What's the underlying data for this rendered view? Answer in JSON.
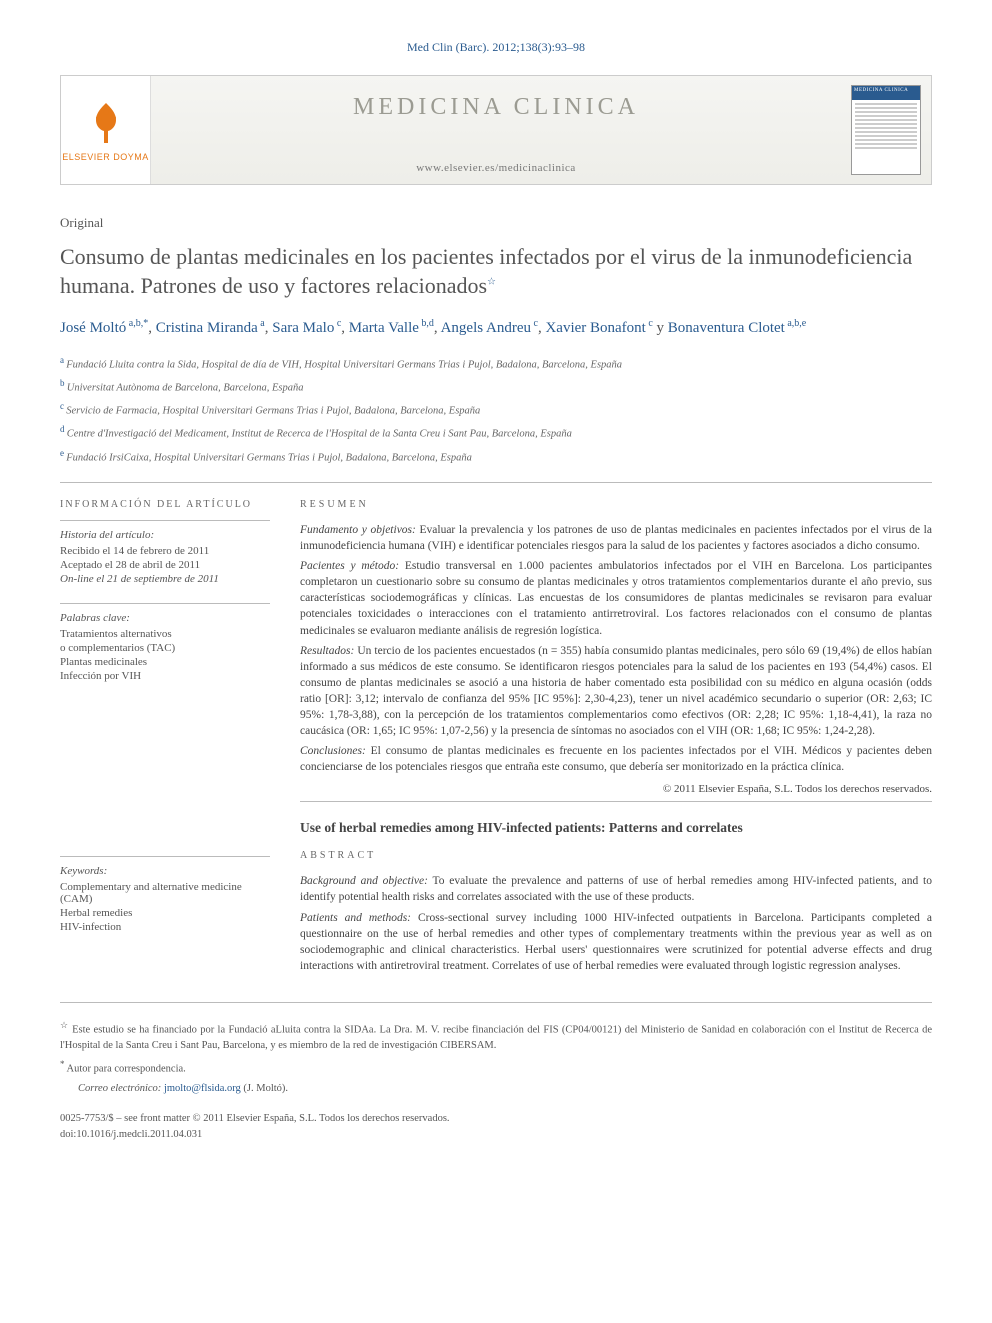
{
  "citation": "Med Clin (Barc). 2012;138(3):93–98",
  "banner": {
    "publisher": "ELSEVIER DOYMA",
    "journal_title": "MEDICINA CLINICA",
    "url": "www.elsevier.es/medicinaclinica",
    "cover_header": "MEDICINA CLINICA"
  },
  "article": {
    "type": "Original",
    "title": "Consumo de plantas medicinales en los pacientes infectados por el virus de la inmunodeficiencia humana. Patrones de uso y factores relacionados",
    "title_star": "☆"
  },
  "authors": [
    {
      "name": "José Moltó",
      "aff": "a,b,*"
    },
    {
      "name": "Cristina Miranda",
      "aff": "a"
    },
    {
      "name": "Sara Malo",
      "aff": "c"
    },
    {
      "name": "Marta Valle",
      "aff": "b,d"
    },
    {
      "name": "Angels Andreu",
      "aff": "c"
    },
    {
      "name": "Xavier Bonafont",
      "aff": "c"
    },
    {
      "name": "Bonaventura Clotet",
      "aff": "a,b,e"
    }
  ],
  "author_joiner": " y ",
  "affiliations": [
    {
      "label": "a",
      "text": "Fundació Lluita contra la Sida, Hospital de día de VIH, Hospital Universitari Germans Trias i Pujol, Badalona, Barcelona, España"
    },
    {
      "label": "b",
      "text": "Universitat Autònoma de Barcelona, Barcelona, España"
    },
    {
      "label": "c",
      "text": "Servicio de Farmacia, Hospital Universitari Germans Trias i Pujol, Badalona, Barcelona, España"
    },
    {
      "label": "d",
      "text": "Centre d'Investigació del Medicament, Institut de Recerca de l'Hospital de la Santa Creu i Sant Pau, Barcelona, España"
    },
    {
      "label": "e",
      "text": "Fundació IrsiCaixa, Hospital Universitari Germans Trias i Pujol, Badalona, Barcelona, España"
    }
  ],
  "info": {
    "section_title": "INFORMACIÓN DEL ARTÍCULO",
    "history_label": "Historia del artículo:",
    "received": "Recibido el 14 de febrero de 2011",
    "accepted": "Aceptado el 28 de abril de 2011",
    "online": "On-line el 21 de septiembre de 2011",
    "keywords_es_label": "Palabras clave:",
    "keywords_es": [
      "Tratamientos alternativos",
      "o complementarios (TAC)",
      "Plantas medicinales",
      "Infección por VIH"
    ],
    "keywords_en_label": "Keywords:",
    "keywords_en": [
      "Complementary and alternative medicine (CAM)",
      "Herbal remedies",
      "HIV-infection"
    ]
  },
  "resumen": {
    "heading": "RESUMEN",
    "paras": [
      {
        "lead": "Fundamento y objetivos:",
        "text": " Evaluar la prevalencia y los patrones de uso de plantas medicinales en pacientes infectados por el virus de la inmunodeficiencia humana (VIH) e identificar potenciales riesgos para la salud de los pacientes y factores asociados a dicho consumo."
      },
      {
        "lead": "Pacientes y método:",
        "text": " Estudio transversal en 1.000 pacientes ambulatorios infectados por el VIH en Barcelona. Los participantes completaron un cuestionario sobre su consumo de plantas medicinales y otros tratamientos complementarios durante el año previo, sus características sociodemográficas y clínicas. Las encuestas de los consumidores de plantas medicinales se revisaron para evaluar potenciales toxicidades o interacciones con el tratamiento antirretroviral. Los factores relacionados con el consumo de plantas medicinales se evaluaron mediante análisis de regresión logística."
      },
      {
        "lead": "Resultados:",
        "text": " Un tercio de los pacientes encuestados (n = 355) había consumido plantas medicinales, pero sólo 69 (19,4%) de ellos habían informado a sus médicos de este consumo. Se identificaron riesgos potenciales para la salud de los pacientes en 193 (54,4%) casos. El consumo de plantas medicinales se asoció a una historia de haber comentado esta posibilidad con su médico en alguna ocasión (odds ratio [OR]: 3,12; intervalo de confianza del 95% [IC 95%]: 2,30-4,23), tener un nivel académico secundario o superior (OR: 2,63; IC 95%: 1,78-3,88), con la percepción de los tratamientos complementarios como efectivos (OR: 2,28; IC 95%: 1,18-4,41), la raza no caucásica (OR: 1,65; IC 95%: 1,07-2,56) y la presencia de síntomas no asociados con el VIH (OR: 1,68; IC 95%: 1,24-2,28)."
      },
      {
        "lead": "Conclusiones:",
        "text": " El consumo de plantas medicinales es frecuente en los pacientes infectados por el VIH. Médicos y pacientes deben concienciarse de los potenciales riesgos que entraña este consumo, que debería ser monitorizado en la práctica clínica."
      }
    ],
    "copyright": "© 2011 Elsevier España, S.L. Todos los derechos reservados."
  },
  "english": {
    "title": "Use of herbal remedies among HIV-infected patients: Patterns and correlates",
    "heading": "ABSTRACT",
    "paras": [
      {
        "lead": "Background and objective:",
        "text": " To evaluate the prevalence and patterns of use of herbal remedies among HIV-infected patients, and to identify potential health risks and correlates associated with the use of these products."
      },
      {
        "lead": "Patients and methods:",
        "text": " Cross-sectional survey including 1000 HIV-infected outpatients in Barcelona. Participants completed a questionnaire on the use of herbal remedies and other types of complementary treatments within the previous year as well as on sociodemographic and clinical characteristics. Herbal users' questionnaires were scrutinized for potential adverse effects and drug interactions with antiretroviral treatment. Correlates of use of herbal remedies were evaluated through logistic regression analyses."
      }
    ]
  },
  "footnotes": {
    "funding_star": "☆",
    "funding": " Este estudio se ha financiado por la Fundació aLluita contra la SIDAa. La Dra. M. V. recibe financiación del FIS (CP04/00121) del Ministerio de Sanidad en colaboración con el Institut de Recerca de l'Hospital de la Santa Creu i Sant Pau, Barcelona, y es miembro de la red de investigación CIBERSAM.",
    "corr_star": "*",
    "corr_label": " Autor para correspondencia.",
    "email_label": "Correo electrónico: ",
    "email": "jmolto@flsida.org",
    "email_author": " (J. Moltó)."
  },
  "footer": {
    "issn_line": "0025-7753/$ – see front matter © 2011 Elsevier España, S.L. Todos los derechos reservados.",
    "doi": "doi:10.1016/j.medcli.2011.04.031"
  },
  "colors": {
    "link": "#2a5b8f",
    "orange": "#e67817",
    "greytext": "#9b9b92"
  }
}
